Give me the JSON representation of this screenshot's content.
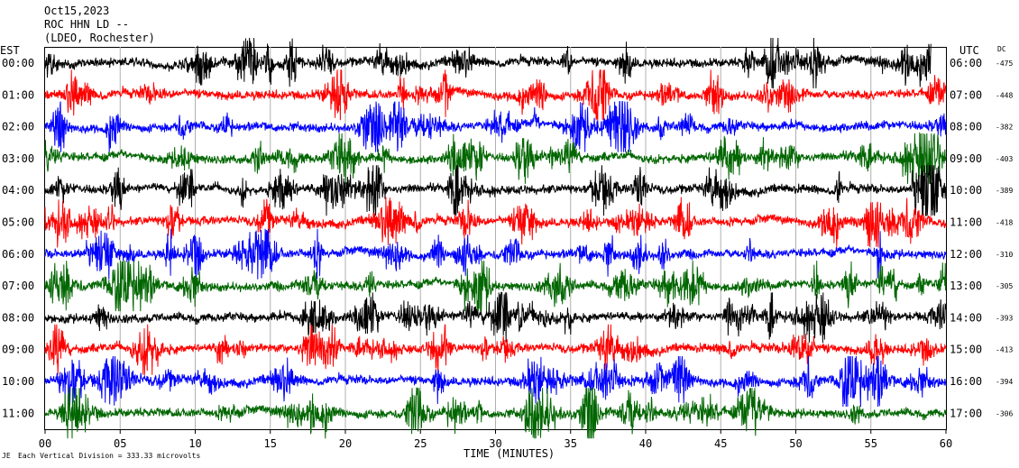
{
  "header": {
    "date": "Oct15,2023",
    "station": "ROC HHN LD --",
    "network": "(LDEO, Rochester)"
  },
  "left_axis_label": "EST",
  "right_axis_label": "UTC",
  "dc_label": "DC",
  "footer_note": "Each Vertical Division = 333.33 microvolts",
  "chart_data": {
    "type": "line",
    "title": "",
    "xlabel": "TIME (MINUTES)",
    "xlim": [
      0,
      60
    ],
    "x_ticks": [
      "00",
      "05",
      "10",
      "15",
      "20",
      "25",
      "30",
      "35",
      "40",
      "45",
      "50",
      "55",
      "60"
    ],
    "grid": true,
    "rows": [
      {
        "est": "00:00",
        "utc": "06:00",
        "dc": "-475",
        "color": "#000000",
        "end_minute": 59
      },
      {
        "est": "01:00",
        "utc": "07:00",
        "dc": "-448",
        "color": "#ff0000",
        "end_minute": 60
      },
      {
        "est": "02:00",
        "utc": "08:00",
        "dc": "-382",
        "color": "#0000ff",
        "end_minute": 60
      },
      {
        "est": "03:00",
        "utc": "09:00",
        "dc": "-403",
        "color": "#006600",
        "end_minute": 60
      },
      {
        "est": "04:00",
        "utc": "10:00",
        "dc": "-389",
        "color": "#000000",
        "end_minute": 60
      },
      {
        "est": "05:00",
        "utc": "11:00",
        "dc": "-418",
        "color": "#ff0000",
        "end_minute": 60
      },
      {
        "est": "06:00",
        "utc": "12:00",
        "dc": "-310",
        "color": "#0000ff",
        "end_minute": 60
      },
      {
        "est": "07:00",
        "utc": "13:00",
        "dc": "-305",
        "color": "#006600",
        "end_minute": 60
      },
      {
        "est": "08:00",
        "utc": "14:00",
        "dc": "-393",
        "color": "#000000",
        "end_minute": 60
      },
      {
        "est": "09:00",
        "utc": "15:00",
        "dc": "-413",
        "color": "#ff0000",
        "end_minute": 60
      },
      {
        "est": "10:00",
        "utc": "16:00",
        "dc": "-394",
        "color": "#0000ff",
        "end_minute": 60
      },
      {
        "est": "11:00",
        "utc": "17:00",
        "dc": "-306",
        "color": "#006600",
        "end_minute": 60
      }
    ]
  }
}
